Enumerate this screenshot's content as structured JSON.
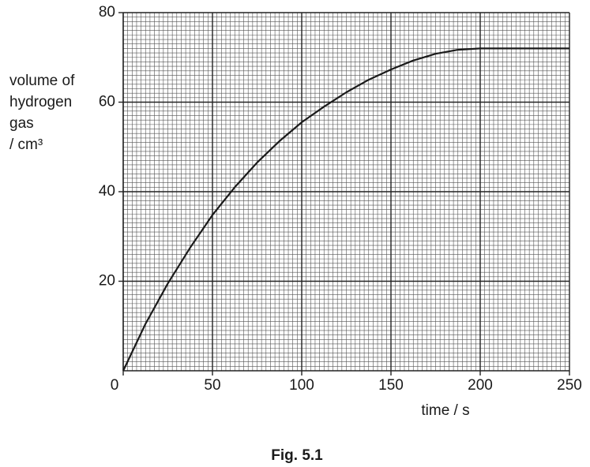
{
  "chart_data": {
    "type": "line",
    "y_label_lines": [
      "volume of",
      "hydrogen",
      "gas",
      "/ cm³"
    ],
    "x_label": "time / s",
    "caption": "Fig. 5.1",
    "x": [
      0,
      12.5,
      25,
      37.5,
      50,
      62.5,
      75,
      87.5,
      100,
      112.5,
      125,
      137.5,
      150,
      162.5,
      175,
      187.5,
      200,
      225,
      250
    ],
    "series": [
      {
        "color": "#1a1a1a",
        "values": [
          0,
          10.5,
          19.5,
          27.5,
          34.8,
          41,
          46.5,
          51.3,
          55.5,
          59,
          62.2,
          65,
          67.3,
          69.3,
          70.8,
          71.7,
          72,
          72,
          72
        ]
      }
    ],
    "xlim": [
      0,
      250
    ],
    "ylim": [
      0,
      80
    ],
    "xticks": [
      0,
      50,
      100,
      150,
      200,
      250
    ],
    "yticks": [
      20,
      40,
      60,
      80
    ],
    "grid": true
  }
}
